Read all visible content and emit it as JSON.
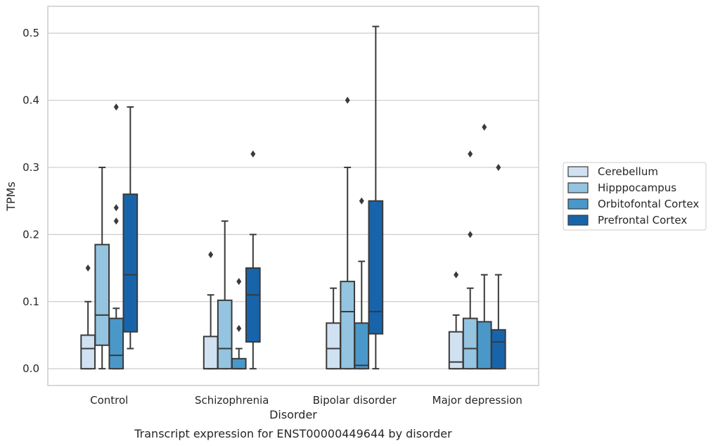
{
  "chart_data": {
    "type": "box",
    "xlabel": "Disorder",
    "ylabel": "TPMs",
    "caption": "Transcript expression for ENST00000449644 by disorder",
    "categories": [
      "Control",
      "Schizophrenia",
      "Bipolar disorder",
      "Major depression"
    ],
    "ylim": [
      -0.025,
      0.54
    ],
    "yticks": [
      0.0,
      0.1,
      0.2,
      0.3,
      0.4,
      0.5
    ],
    "ytick_labels": [
      "0.0",
      "0.1",
      "0.2",
      "0.3",
      "0.4",
      "0.5"
    ],
    "grid": true,
    "legend_position": "right",
    "series": [
      {
        "name": "Cerebellum",
        "color": "#d0e1f2",
        "boxes": [
          {
            "min": 0.0,
            "q1": 0.0,
            "median": 0.03,
            "q3": 0.05,
            "max": 0.1,
            "outliers": [
              0.15
            ]
          },
          {
            "min": 0.0,
            "q1": 0.0,
            "median": 0.0,
            "q3": 0.048,
            "max": 0.11,
            "outliers": [
              0.17
            ]
          },
          {
            "min": 0.0,
            "q1": 0.0,
            "median": 0.03,
            "q3": 0.068,
            "max": 0.12,
            "outliers": []
          },
          {
            "min": 0.0,
            "q1": 0.0,
            "median": 0.01,
            "q3": 0.055,
            "max": 0.08,
            "outliers": [
              0.14
            ]
          }
        ]
      },
      {
        "name": "Hipppocampus",
        "color": "#94c4df",
        "boxes": [
          {
            "min": 0.0,
            "q1": 0.035,
            "median": 0.08,
            "q3": 0.185,
            "max": 0.3,
            "outliers": []
          },
          {
            "min": 0.0,
            "q1": 0.0,
            "median": 0.03,
            "q3": 0.102,
            "max": 0.22,
            "outliers": []
          },
          {
            "min": 0.0,
            "q1": 0.0,
            "median": 0.085,
            "q3": 0.13,
            "max": 0.3,
            "outliers": [
              0.4
            ]
          },
          {
            "min": 0.0,
            "q1": 0.0,
            "median": 0.03,
            "q3": 0.075,
            "max": 0.12,
            "outliers": [
              0.2,
              0.32
            ]
          }
        ]
      },
      {
        "name": "Orbitofontal Cortex",
        "color": "#4a98c9",
        "boxes": [
          {
            "min": 0.0,
            "q1": 0.0,
            "median": 0.02,
            "q3": 0.075,
            "max": 0.09,
            "outliers": [
              0.22,
              0.24,
              0.39
            ]
          },
          {
            "min": 0.0,
            "q1": 0.0,
            "median": 0.0,
            "q3": 0.015,
            "max": 0.03,
            "outliers": [
              0.06,
              0.13
            ]
          },
          {
            "min": 0.0,
            "q1": 0.0,
            "median": 0.005,
            "q3": 0.068,
            "max": 0.16,
            "outliers": [
              0.25
            ]
          },
          {
            "min": 0.0,
            "q1": 0.0,
            "median": 0.0,
            "q3": 0.07,
            "max": 0.14,
            "outliers": [
              0.36
            ]
          }
        ]
      },
      {
        "name": "Prefrontal Cortex",
        "color": "#1764ab",
        "boxes": [
          {
            "min": 0.03,
            "q1": 0.055,
            "median": 0.14,
            "q3": 0.26,
            "max": 0.39,
            "outliers": []
          },
          {
            "min": 0.0,
            "q1": 0.04,
            "median": 0.11,
            "q3": 0.15,
            "max": 0.2,
            "outliers": [
              0.32
            ]
          },
          {
            "min": 0.0,
            "q1": 0.052,
            "median": 0.085,
            "q3": 0.25,
            "max": 0.51,
            "outliers": []
          },
          {
            "min": 0.0,
            "q1": 0.0,
            "median": 0.04,
            "q3": 0.058,
            "max": 0.14,
            "outliers": [
              0.3
            ]
          }
        ]
      }
    ]
  }
}
